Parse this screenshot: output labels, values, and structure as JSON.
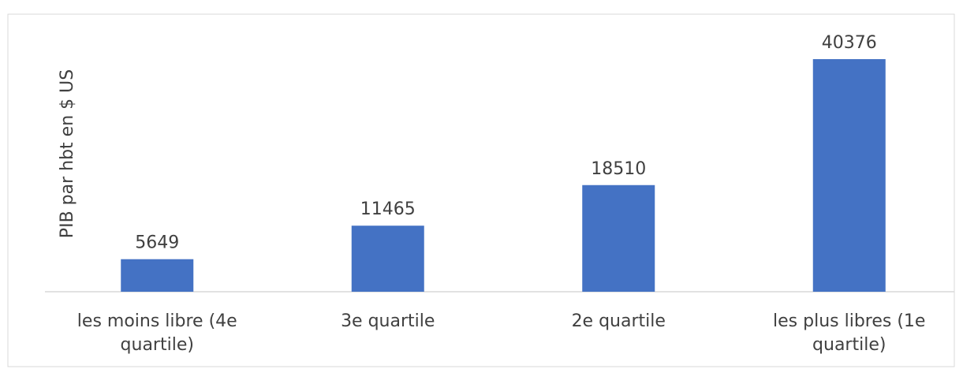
{
  "chart_data": {
    "type": "bar",
    "y_label": "PIB par hbt en $ US",
    "categories": [
      "les moins libre (4e quartile)",
      "3e quartile",
      "2e quartile",
      "les plus libres (1e quartile)"
    ],
    "values": [
      5649,
      11465,
      18510,
      40376
    ],
    "color": "#4472c4"
  }
}
